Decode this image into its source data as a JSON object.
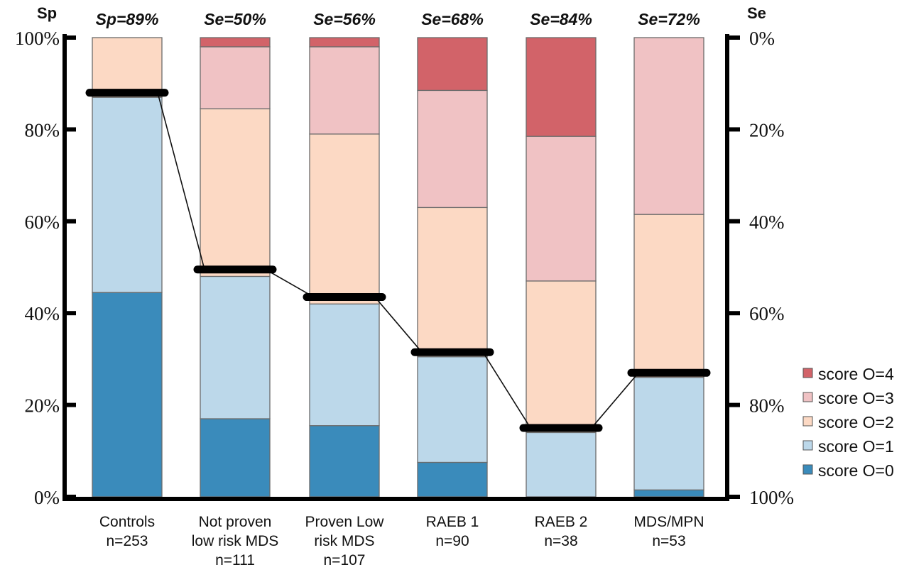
{
  "chart_data": {
    "type": "bar",
    "stacked": true,
    "left_axis_title": "Sp",
    "right_axis_title": "Se",
    "left_ticks": [
      "0%",
      "20%",
      "40%",
      "60%",
      "80%",
      "100%"
    ],
    "right_ticks": [
      "100%",
      "80%",
      "60%",
      "40%",
      "20%",
      "0%"
    ],
    "ylim": [
      0,
      100
    ],
    "categories": [
      {
        "line1": "Controls",
        "line2": "n=253",
        "line3": "",
        "header": "Sp=89%",
        "threshold": 88
      },
      {
        "line1": "Not proven",
        "line2": "low risk MDS",
        "line3": "n=111",
        "header": "Se=50%",
        "threshold": 49.5
      },
      {
        "line1": "Proven Low",
        "line2": "risk MDS",
        "line3": "n=107",
        "header": "Se=56%",
        "threshold": 43.5
      },
      {
        "line1": "RAEB 1",
        "line2": "n=90",
        "line3": "",
        "header": "Se=68%",
        "threshold": 31.5
      },
      {
        "line1": "RAEB 2",
        "line2": "n=38",
        "line3": "",
        "header": "Se=84%",
        "threshold": 15
      },
      {
        "line1": "MDS/MPN",
        "line2": "n=53",
        "line3": "",
        "header": "Se=72%",
        "threshold": 27
      }
    ],
    "series": [
      {
        "name": "score O=0",
        "color": "#3a8bbb",
        "values": [
          44.5,
          17,
          15.5,
          7.5,
          0,
          1.5
        ]
      },
      {
        "name": "score O=1",
        "color": "#bcd8ea",
        "values": [
          42.5,
          31,
          26.5,
          23,
          14,
          24.5
        ]
      },
      {
        "name": "score O=2",
        "color": "#fcd9c4",
        "values": [
          13,
          36.5,
          37,
          32.5,
          33,
          35.5
        ]
      },
      {
        "name": "score O=3",
        "color": "#f0c2c4",
        "values": [
          0,
          13.5,
          19,
          25.5,
          31.5,
          38.5
        ]
      },
      {
        "name": "score O=4",
        "color": "#d26369",
        "values": [
          0,
          2,
          2,
          11.5,
          21.5,
          0
        ]
      }
    ]
  }
}
